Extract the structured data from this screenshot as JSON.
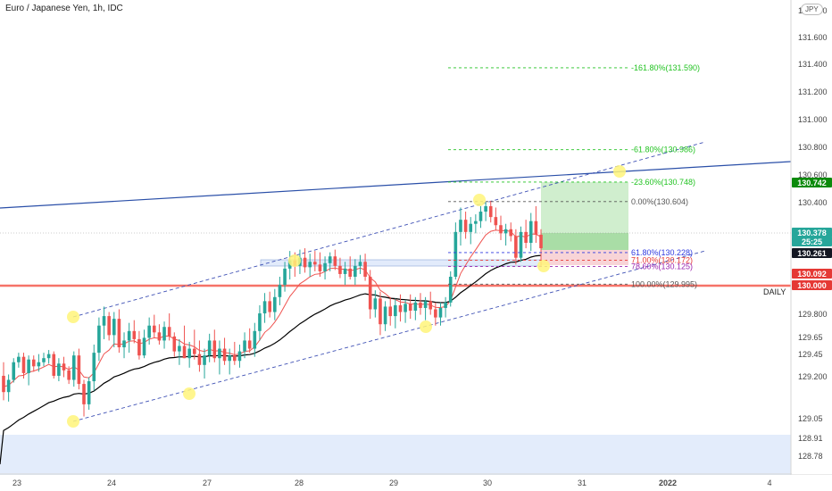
{
  "header": {
    "title": "Euro / Japanese Yen, 1h, IDC",
    "currency": "JPY"
  },
  "colors": {
    "bull": "#26a69a",
    "bear": "#ef5350",
    "ema_fast": "#ef5350",
    "ema_slow": "#000000",
    "channel": "#3f51b5",
    "trend": "#2a4fa8",
    "support": "#f44336",
    "fib_green": "#22c322",
    "fib_blue": "#2f3ae0",
    "fib_purple": "#9c27b0",
    "fib_neutral": "#555555",
    "target_zone": "#c8ebc6",
    "stop_zone": "#f7cfd3",
    "marker": "#fff47a"
  },
  "chart_data": {
    "type": "candlestick",
    "symbol": "Euro / Japanese Yen",
    "interval": "1h",
    "source": "IDC",
    "x_ticks": [
      "23",
      "24",
      "27",
      "28",
      "29",
      "30",
      "31",
      "2022",
      "4"
    ],
    "y_ticks": [
      131.8,
      131.6,
      131.4,
      131.2,
      131.0,
      130.8,
      130.6,
      130.4,
      129.8,
      129.65,
      129.45,
      129.2,
      129.05,
      128.91,
      128.78
    ],
    "y_range": [
      128.7,
      131.9
    ],
    "price_labels": [
      {
        "value": "130.742",
        "color": "#0b8a0b"
      },
      {
        "value": "130.378",
        "color": "#26a69a"
      },
      {
        "value": "25:25",
        "color": "#26a69a"
      },
      {
        "value": "130.261",
        "color": "#131722"
      },
      {
        "value": "130.092",
        "color": "#e53935"
      },
      {
        "value": "130.000",
        "color": "#e53935"
      }
    ],
    "support_label": "DAILY",
    "fib_levels": [
      {
        "label": "-161.80%(131.590)",
        "value": 131.59,
        "color": "#22c322"
      },
      {
        "label": "-61.80%(130.986)",
        "value": 130.986,
        "color": "#22c322"
      },
      {
        "label": "-23.60%(130.748)",
        "value": 130.748,
        "color": "#22c322"
      },
      {
        "label": "0.00%(130.604)",
        "value": 130.604,
        "color": "#555555"
      },
      {
        "label": "61.80%(130.228)",
        "value": 130.228,
        "color": "#2f3ae0"
      },
      {
        "label": "71.00%(130.172)",
        "value": 130.172,
        "color": "#e53935"
      },
      {
        "label": "78.60%(130.125)",
        "value": 130.125,
        "color": "#9c27b0"
      },
      {
        "label": "100.00%(129.995)",
        "value": 129.995,
        "color": "#555555"
      }
    ],
    "candles": [
      [
        129.32,
        129.42,
        129.14,
        129.2
      ],
      [
        129.2,
        129.33,
        129.13,
        129.29
      ],
      [
        129.29,
        129.45,
        129.27,
        129.42
      ],
      [
        129.42,
        129.49,
        129.38,
        129.46
      ],
      [
        129.46,
        129.49,
        129.3,
        129.34
      ],
      [
        129.34,
        129.47,
        129.25,
        129.44
      ],
      [
        129.44,
        129.47,
        129.35,
        129.39
      ],
      [
        129.39,
        129.48,
        129.35,
        129.42
      ],
      [
        129.42,
        129.49,
        129.39,
        129.45
      ],
      [
        129.45,
        129.51,
        129.41,
        129.48
      ],
      [
        129.48,
        129.5,
        129.3,
        129.32
      ],
      [
        129.32,
        129.45,
        129.28,
        129.41
      ],
      [
        129.41,
        129.46,
        129.31,
        129.36
      ],
      [
        129.36,
        129.39,
        129.26,
        129.29
      ],
      [
        129.29,
        129.5,
        129.24,
        129.47
      ],
      [
        129.47,
        129.52,
        129.22,
        129.26
      ],
      [
        129.26,
        129.29,
        129.02,
        129.11
      ],
      [
        129.11,
        129.31,
        129.07,
        129.28
      ],
      [
        129.28,
        129.55,
        129.21,
        129.49
      ],
      [
        129.49,
        129.75,
        129.43,
        129.69
      ],
      [
        129.69,
        129.83,
        129.59,
        129.76
      ],
      [
        129.76,
        129.79,
        129.58,
        129.62
      ],
      [
        129.62,
        129.79,
        129.53,
        129.74
      ],
      [
        129.74,
        129.81,
        129.49,
        129.53
      ],
      [
        129.53,
        129.64,
        129.45,
        129.58
      ],
      [
        129.58,
        129.71,
        129.49,
        129.65
      ],
      [
        129.65,
        129.73,
        129.56,
        129.59
      ],
      [
        129.59,
        129.65,
        129.44,
        129.47
      ],
      [
        129.47,
        129.66,
        129.45,
        129.6
      ],
      [
        129.6,
        129.75,
        129.55,
        129.69
      ],
      [
        129.69,
        129.77,
        129.6,
        129.64
      ],
      [
        129.64,
        129.7,
        129.55,
        129.58
      ],
      [
        129.58,
        129.72,
        129.52,
        129.68
      ],
      [
        129.68,
        129.78,
        129.58,
        129.61
      ],
      [
        129.61,
        129.64,
        129.46,
        129.5
      ],
      [
        129.5,
        129.59,
        129.4,
        129.54
      ],
      [
        129.54,
        129.69,
        129.45,
        129.45
      ],
      [
        129.45,
        129.57,
        129.38,
        129.52
      ],
      [
        129.52,
        129.66,
        129.44,
        129.48
      ],
      [
        129.48,
        129.58,
        129.35,
        129.4
      ],
      [
        129.4,
        129.52,
        129.3,
        129.47
      ],
      [
        129.47,
        129.63,
        129.42,
        129.58
      ],
      [
        129.58,
        129.66,
        129.42,
        129.45
      ],
      [
        129.45,
        129.58,
        129.33,
        129.52
      ],
      [
        129.52,
        129.6,
        129.4,
        129.43
      ],
      [
        129.43,
        129.52,
        129.33,
        129.47
      ],
      [
        129.47,
        129.57,
        129.4,
        129.43
      ],
      [
        129.43,
        129.55,
        129.38,
        129.5
      ],
      [
        129.5,
        129.64,
        129.45,
        129.58
      ],
      [
        129.58,
        129.67,
        129.49,
        129.52
      ],
      [
        129.52,
        129.71,
        129.46,
        129.65
      ],
      [
        129.65,
        129.84,
        129.58,
        129.78
      ],
      [
        129.78,
        129.93,
        129.71,
        129.87
      ],
      [
        129.87,
        129.94,
        129.75,
        129.79
      ],
      [
        129.79,
        129.96,
        129.73,
        129.9
      ],
      [
        129.9,
        130.05,
        129.84,
        129.99
      ],
      [
        129.99,
        130.16,
        129.94,
        130.11
      ],
      [
        130.11,
        130.24,
        130.03,
        130.17
      ],
      [
        130.17,
        130.23,
        130.05,
        130.13
      ],
      [
        130.13,
        130.25,
        130.07,
        130.19
      ],
      [
        130.19,
        130.26,
        130.08,
        130.12
      ],
      [
        130.12,
        130.22,
        130.05,
        130.16
      ],
      [
        130.16,
        130.24,
        130.09,
        130.14
      ],
      [
        130.14,
        130.23,
        130.05,
        130.09
      ],
      [
        130.09,
        130.2,
        130.03,
        130.15
      ],
      [
        130.15,
        130.23,
        130.09,
        130.2
      ],
      [
        130.2,
        130.25,
        130.1,
        130.13
      ],
      [
        130.13,
        130.19,
        130.04,
        130.07
      ],
      [
        130.07,
        130.16,
        129.99,
        130.11
      ],
      [
        130.11,
        130.2,
        130.03,
        130.05
      ],
      [
        130.05,
        130.18,
        129.99,
        130.13
      ],
      [
        130.13,
        130.21,
        130.07,
        130.16
      ],
      [
        130.16,
        130.22,
        130.02,
        130.05
      ],
      [
        130.05,
        130.1,
        129.74,
        129.81
      ],
      [
        129.81,
        129.95,
        129.75,
        129.89
      ],
      [
        129.89,
        129.94,
        129.62,
        129.7
      ],
      [
        129.7,
        129.87,
        129.65,
        129.83
      ],
      [
        129.83,
        129.9,
        129.69,
        129.76
      ],
      [
        129.76,
        129.89,
        129.67,
        129.84
      ],
      [
        129.84,
        129.92,
        129.72,
        129.79
      ],
      [
        129.79,
        129.88,
        129.71,
        129.85
      ],
      [
        129.85,
        129.92,
        129.74,
        129.8
      ],
      [
        129.8,
        129.9,
        129.73,
        129.86
      ],
      [
        129.86,
        129.93,
        129.77,
        129.82
      ],
      [
        129.82,
        129.9,
        129.73,
        129.87
      ],
      [
        129.87,
        129.94,
        129.77,
        129.81
      ],
      [
        129.81,
        129.86,
        129.69,
        129.75
      ],
      [
        129.75,
        129.86,
        129.69,
        129.82
      ],
      [
        129.82,
        129.9,
        129.75,
        129.86
      ],
      [
        129.86,
        130.09,
        129.83,
        130.05
      ],
      [
        130.05,
        130.45,
        130.03,
        130.38
      ],
      [
        130.38,
        130.56,
        130.28,
        130.47
      ],
      [
        130.47,
        130.53,
        130.33,
        130.38
      ],
      [
        130.38,
        130.49,
        130.29,
        130.44
      ],
      [
        130.44,
        130.51,
        130.37,
        130.46
      ],
      [
        130.46,
        130.57,
        130.41,
        130.53
      ],
      [
        130.53,
        130.6,
        130.46,
        130.57
      ],
      [
        130.57,
        130.61,
        130.45,
        130.49
      ],
      [
        130.49,
        130.56,
        130.39,
        130.43
      ],
      [
        130.43,
        130.5,
        130.32,
        130.37
      ],
      [
        130.37,
        130.44,
        130.28,
        130.4
      ],
      [
        130.4,
        130.45,
        130.31,
        130.35
      ],
      [
        130.35,
        130.4,
        130.14,
        130.19
      ],
      [
        130.19,
        130.42,
        130.16,
        130.38
      ],
      [
        130.38,
        130.47,
        130.26,
        130.3
      ],
      [
        130.3,
        130.52,
        130.24,
        130.46
      ],
      [
        130.46,
        130.57,
        130.3,
        130.36
      ],
      [
        130.36,
        130.4,
        130.13,
        130.26
      ]
    ]
  }
}
